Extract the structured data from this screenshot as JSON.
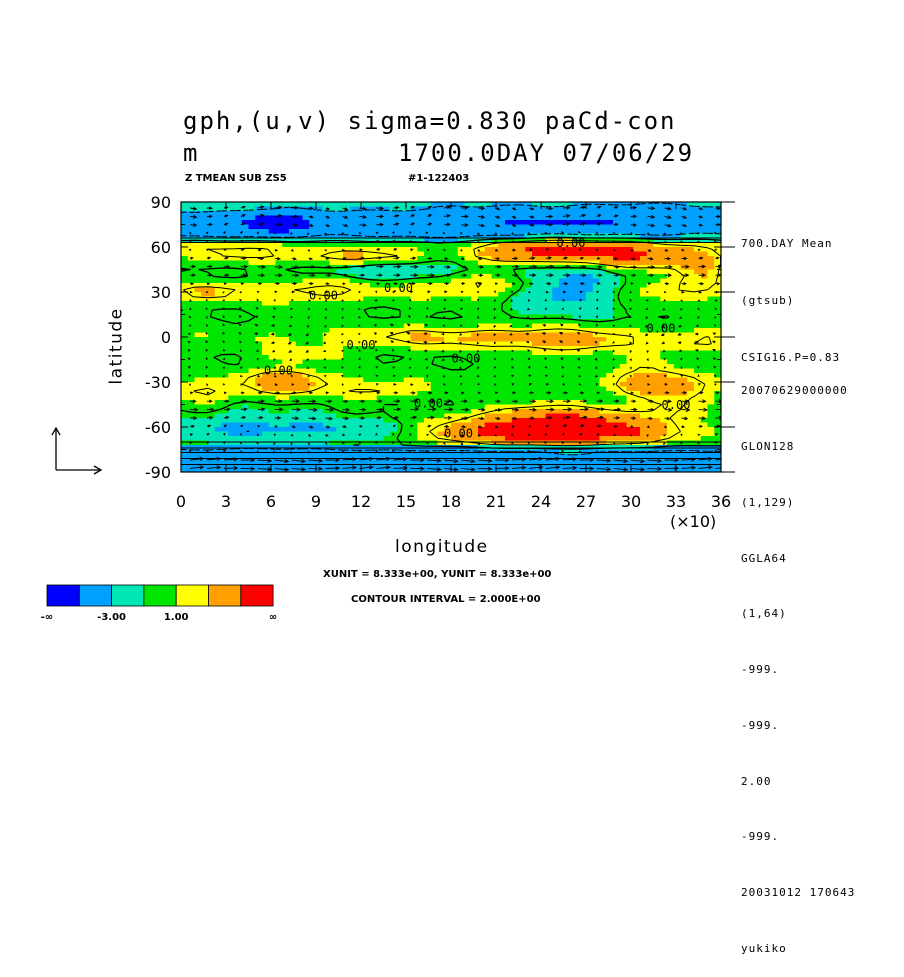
{
  "header": {
    "title_line1": "gph,(u,v) sigma=0.830 paCd-con",
    "title_line2_left": "m",
    "title_line2_right": "1700.0DAY 07/06/29",
    "sub_left": "Z TMEAN SUB ZS5",
    "sub_right": "#1-122403"
  },
  "side_info": {
    "top": [
      "700.DAY Mean",
      "(gtsub)",
      "CSIG16.P=0.83"
    ],
    "bottom": [
      "20070629000000",
      "GLON128",
      "(1,129)",
      "GGLA64",
      "(1,64)",
      "-999.",
      "-999.",
      "2.00",
      "-999.",
      "20031012 170643",
      "yukiko"
    ]
  },
  "footer": {
    "units": "XUNIT = 8.333e+00, YUNIT = 8.333e+00",
    "contour_interval": "CONTOUR INTERVAL = 2.000E+00"
  },
  "colorbar": {
    "colors": [
      "#0000ff",
      "#00a0ff",
      "#00e6b4",
      "#00e600",
      "#ffff00",
      "#ffa000",
      "#ff0000"
    ],
    "labels": [
      "-∞",
      "-3.00",
      "1.00",
      "∞"
    ]
  },
  "chart_data": {
    "type": "heatmap",
    "xlabel": "longitude",
    "ylabel": "latitude",
    "x_multiplier": "(×10)",
    "xticks": [
      0,
      3,
      6,
      9,
      12,
      15,
      18,
      21,
      24,
      27,
      30,
      33,
      36
    ],
    "yticks": [
      90,
      60,
      30,
      0,
      -30,
      -60,
      -90
    ],
    "xlim": [
      0,
      36
    ],
    "ylim": [
      -90,
      90
    ],
    "contour_labels": [
      {
        "text": "0.00",
        "lon": 26,
        "lat": 60
      },
      {
        "text": "0.00",
        "lon": 9.5,
        "lat": 25
      },
      {
        "text": "0.00",
        "lon": 14.5,
        "lat": 30
      },
      {
        "text": "0.00",
        "lon": 32,
        "lat": 3
      },
      {
        "text": "0.00",
        "lon": 12,
        "lat": -8
      },
      {
        "text": "0.00",
        "lon": 19,
        "lat": -17
      },
      {
        "text": "0.00",
        "lon": 6.5,
        "lat": -25
      },
      {
        "text": "0.00",
        "lon": 16.5,
        "lat": -47
      },
      {
        "text": "0.00",
        "lon": 18.5,
        "lat": -67
      },
      {
        "text": "0.00",
        "lon": 33,
        "lat": -48
      }
    ],
    "vector_reference": {
      "u": 8.333,
      "v": 8.333
    }
  }
}
